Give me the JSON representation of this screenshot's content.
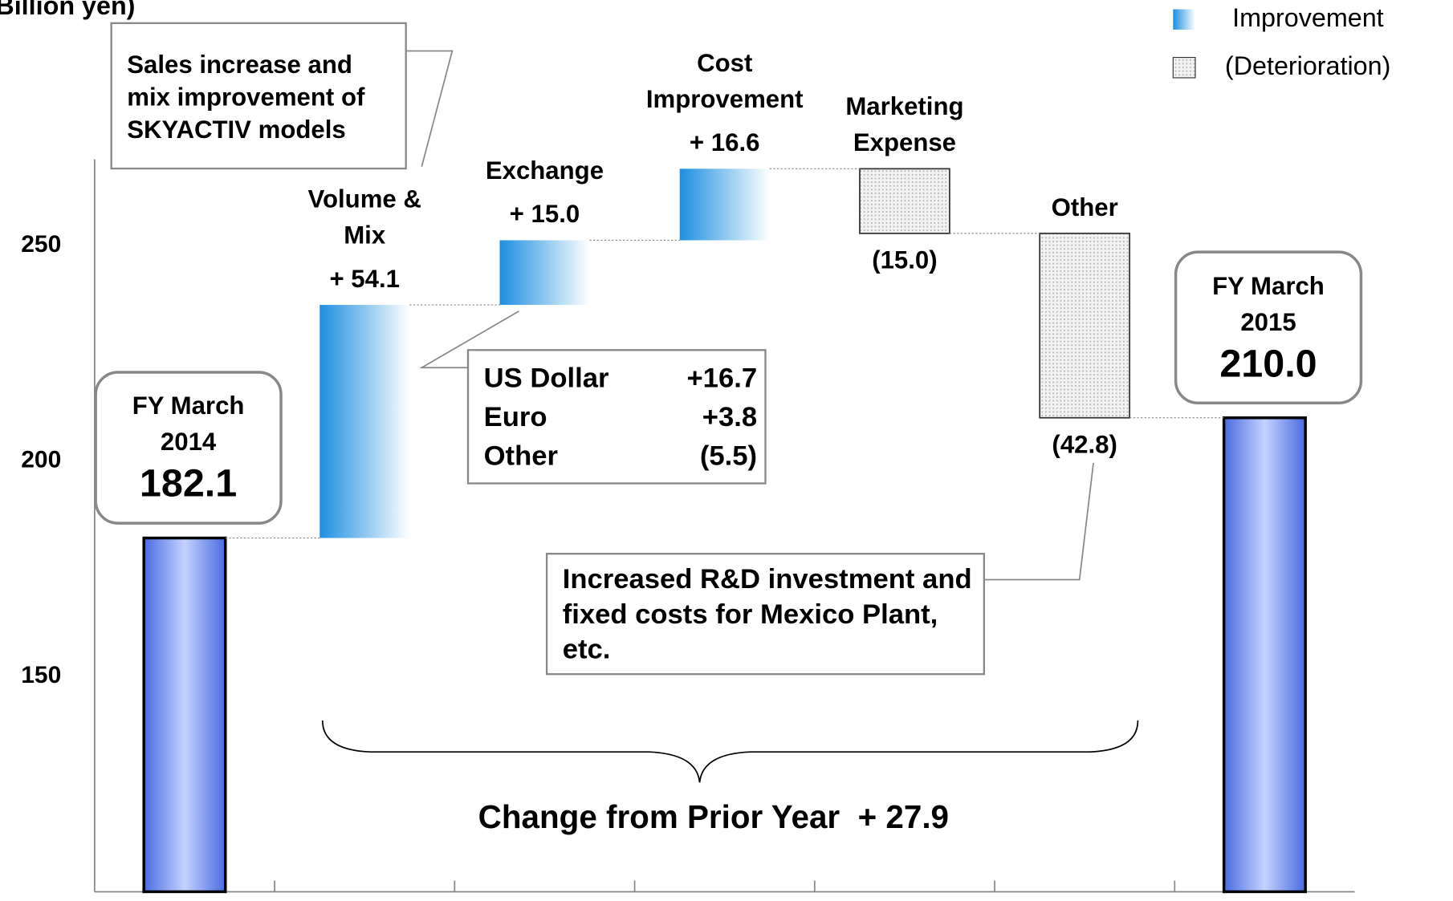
{
  "chart_data": {
    "type": "waterfall",
    "y_axis_label": "Billion yen)",
    "categories": [
      "FY March 2014",
      "Volume & Mix",
      "Exchange",
      "Cost Improvement",
      "Marketing Expense",
      "Other",
      "FY March 2015"
    ],
    "kinds": [
      "total",
      "delta",
      "delta",
      "delta",
      "delta",
      "delta",
      "total"
    ],
    "values": [
      182.1,
      54.1,
      15.0,
      16.6,
      -15.0,
      -42.8,
      210.0
    ],
    "value_labels": [
      "182.1",
      "+ 54.1",
      "+ 15.0",
      "+ 16.6",
      "(15.0)",
      "(42.8)",
      "210.0"
    ],
    "ylim": [
      100,
      270
    ],
    "yticks": [
      100,
      150,
      200,
      250
    ],
    "colors": {
      "total": "#4a6be0",
      "improvement": "#1e8fe0",
      "deterioration": "#d0d0d0"
    },
    "legend": {
      "position": "upper right",
      "items": [
        "Improvement",
        "(Deterioration)"
      ]
    },
    "annotations": {
      "volume_note": "Sales increase and mix improvement of SKYACTIV models",
      "exchange_breakdown": [
        [
          "US Dollar",
          "+16.7"
        ],
        [
          "Euro",
          "+3.8"
        ],
        [
          "Other",
          "(5.5)"
        ]
      ],
      "other_note": "Increased R&D investment and fixed costs for Mexico Plant, etc.",
      "change_from_prior_year": "Change from Prior Year  + 27.9"
    }
  }
}
